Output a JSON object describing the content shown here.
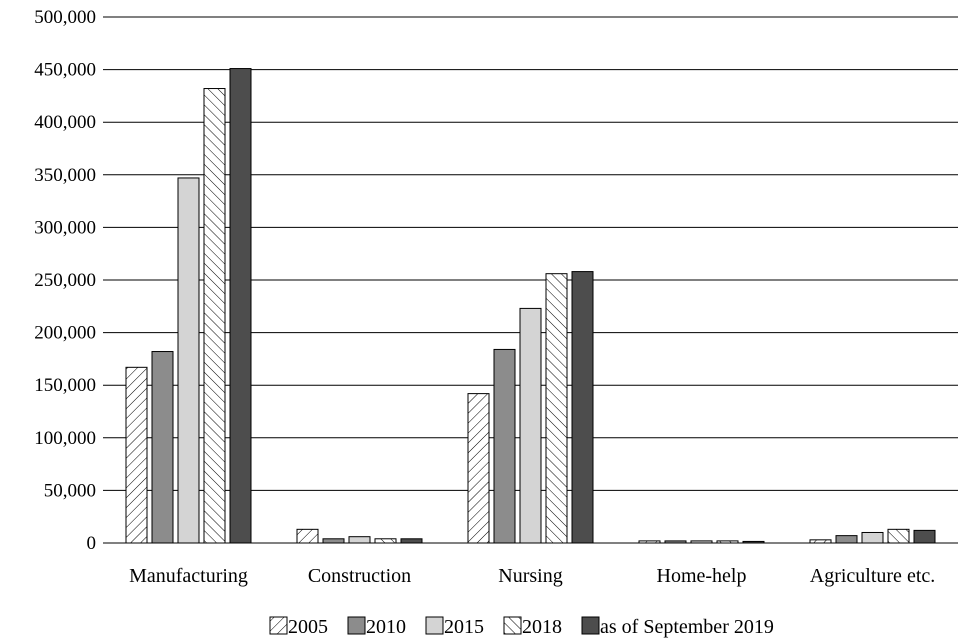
{
  "chart_data": {
    "type": "bar",
    "title": "",
    "xlabel": "",
    "ylabel": "",
    "categories": [
      "Manufacturing",
      "Construction",
      "Nursing",
      "Home-help",
      "Agriculture etc."
    ],
    "ylim": [
      0,
      500000
    ],
    "yticks": [
      0,
      50000,
      100000,
      150000,
      200000,
      250000,
      300000,
      350000,
      400000,
      450000,
      500000
    ],
    "ytick_labels": [
      "0",
      "50,000",
      "100,000",
      "150,000",
      "200,000",
      "250,000",
      "300,000",
      "350,000",
      "400,000",
      "450,000",
      "500,000"
    ],
    "grid": "horizontal",
    "legend_position": "bottom",
    "series": [
      {
        "name": "2005",
        "values": [
          167000,
          13000,
          142000,
          2000,
          3000
        ],
        "pattern": "hatch-fwd",
        "color": "#ffffff"
      },
      {
        "name": "2010",
        "values": [
          182000,
          4000,
          184000,
          2000,
          7000
        ],
        "pattern": "solid",
        "color": "#8c8c8c"
      },
      {
        "name": "2015",
        "values": [
          347000,
          6000,
          223000,
          2000,
          10000
        ],
        "pattern": "solid",
        "color": "#d4d4d4"
      },
      {
        "name": "2018",
        "values": [
          432000,
          4000,
          256000,
          2000,
          13000
        ],
        "pattern": "hatch-back",
        "color": "#ffffff"
      },
      {
        "name": "as of September 2019",
        "values": [
          451000,
          4000,
          258000,
          1500,
          12000
        ],
        "pattern": "solid",
        "color": "#4d4d4d"
      }
    ]
  }
}
